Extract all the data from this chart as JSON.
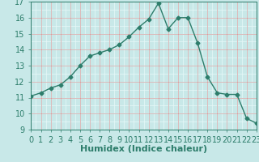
{
  "x": [
    0,
    1,
    2,
    3,
    4,
    5,
    6,
    7,
    8,
    9,
    10,
    11,
    12,
    13,
    14,
    15,
    16,
    17,
    18,
    19,
    20,
    21,
    22,
    23
  ],
  "y": [
    11.1,
    11.3,
    11.6,
    11.8,
    12.3,
    13.0,
    13.6,
    13.8,
    14.0,
    14.3,
    14.8,
    15.4,
    15.9,
    16.9,
    15.3,
    16.0,
    16.0,
    14.4,
    12.3,
    11.3,
    11.2,
    11.2,
    9.7,
    9.4
  ],
  "xlim": [
    0,
    23
  ],
  "ylim": [
    9,
    17
  ],
  "yticks": [
    9,
    10,
    11,
    12,
    13,
    14,
    15,
    16,
    17
  ],
  "xticks": [
    0,
    1,
    2,
    3,
    4,
    5,
    6,
    7,
    8,
    9,
    10,
    11,
    12,
    13,
    14,
    15,
    16,
    17,
    18,
    19,
    20,
    21,
    22,
    23
  ],
  "xlabel": "Humidex (Indice chaleur)",
  "line_color": "#2d7d6b",
  "marker": "D",
  "marker_size": 2.5,
  "bg_color": "#c8e8e8",
  "grid_white_color": "#e8f8f8",
  "grid_red_color": "#d08080",
  "tick_color": "#2d7d6b",
  "xlabel_color": "#2d7d6b",
  "xlabel_fontsize": 8,
  "tick_fontsize": 7
}
